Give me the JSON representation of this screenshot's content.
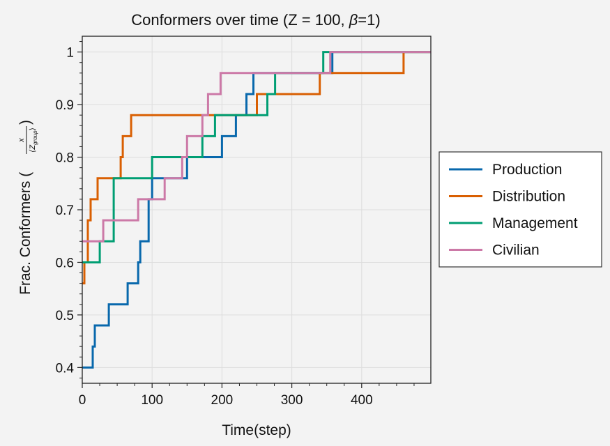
{
  "chart_data": {
    "type": "line",
    "step": "post",
    "title_parts": [
      "Conformers over time (Z = 100, ",
      "β",
      "=1)"
    ],
    "xlabel": "Time(step)",
    "ylabel_parts": [
      "Frac. Conformers (",
      "x",
      "⟨Z",
      "group",
      "⟩",
      ")"
    ],
    "xlim": [
      0,
      499
    ],
    "ylim": [
      0.37,
      1.03
    ],
    "xticks": [
      0,
      100,
      200,
      300,
      400
    ],
    "xtick_labels": [
      "0",
      "100",
      "200",
      "300",
      "400"
    ],
    "yticks": [
      0.4,
      0.5,
      0.6,
      0.7,
      0.8,
      0.9,
      1.0
    ],
    "ytick_labels": [
      "0.4",
      "0.5",
      "0.6",
      "0.7",
      "0.8",
      "0.9",
      "1"
    ],
    "grid": true,
    "legend_position": "outside-right",
    "colors": {
      "Production": "#0868ac",
      "Distribution": "#d95f02",
      "Management": "#009e73",
      "Civilian": "#cc79a7"
    },
    "series": [
      {
        "name": "Production",
        "x": [
          0,
          15,
          18,
          38,
          65,
          80,
          83,
          95,
          100,
          115,
          150,
          200,
          220,
          235,
          245,
          358,
          499
        ],
        "y": [
          0.4,
          0.44,
          0.48,
          0.52,
          0.56,
          0.6,
          0.64,
          0.72,
          0.76,
          0.76,
          0.8,
          0.84,
          0.88,
          0.92,
          0.96,
          1.0,
          1.0
        ]
      },
      {
        "name": "Distribution",
        "x": [
          0,
          3,
          8,
          12,
          22,
          45,
          55,
          58,
          62,
          70,
          250,
          340,
          460,
          499
        ],
        "y": [
          0.56,
          0.6,
          0.68,
          0.72,
          0.76,
          0.76,
          0.8,
          0.84,
          0.84,
          0.88,
          0.92,
          0.96,
          1.0,
          1.0
        ]
      },
      {
        "name": "Management",
        "x": [
          0,
          25,
          45,
          65,
          100,
          172,
          190,
          265,
          276,
          345,
          499
        ],
        "y": [
          0.6,
          0.64,
          0.76,
          0.76,
          0.8,
          0.84,
          0.88,
          0.92,
          0.96,
          1.0,
          1.0
        ]
      },
      {
        "name": "Civilian",
        "x": [
          0,
          30,
          80,
          118,
          143,
          150,
          172,
          180,
          198,
          355,
          499
        ],
        "y": [
          0.64,
          0.68,
          0.72,
          0.76,
          0.8,
          0.84,
          0.88,
          0.92,
          0.96,
          1.0,
          1.0
        ]
      }
    ]
  }
}
